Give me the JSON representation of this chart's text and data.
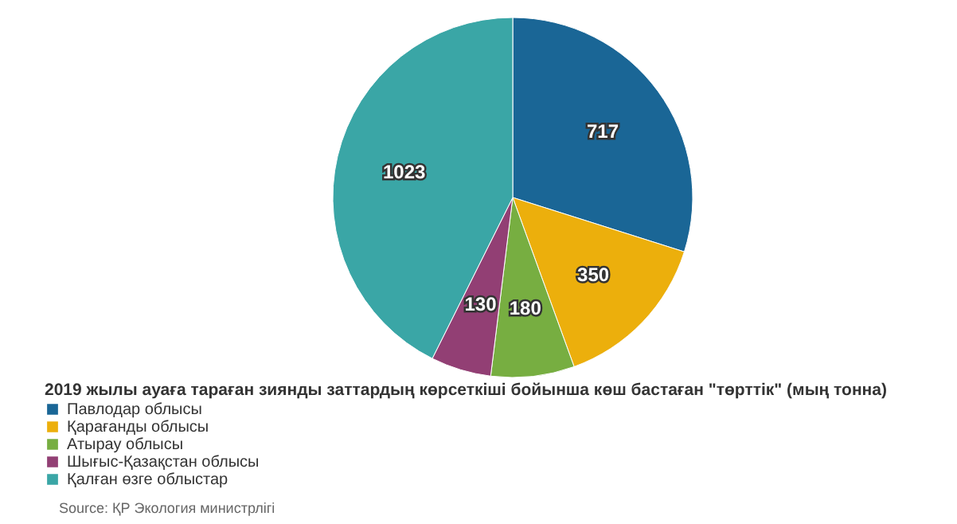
{
  "chart_data": {
    "type": "pie",
    "title": "2019 жылы ауаға тараған зиянды заттардың көрсеткіші бойынша көш бастаған \"төрттік\" (мың тонна)",
    "categories": [
      "Павлодар облысы",
      "Қарағанды облысы",
      "Атырау облысы",
      "Шығыс-Қазақстан облысы",
      "Қалған өзге облыстар"
    ],
    "values": [
      717,
      350,
      180,
      130,
      1023
    ],
    "colors": [
      "#1a6696",
      "#ecaf0c",
      "#77ae41",
      "#923f74",
      "#3aa6a6"
    ],
    "data_labels": true,
    "legend": "bottom left",
    "annotations": [
      "Source: ҚР Экология министрлігі"
    ]
  }
}
